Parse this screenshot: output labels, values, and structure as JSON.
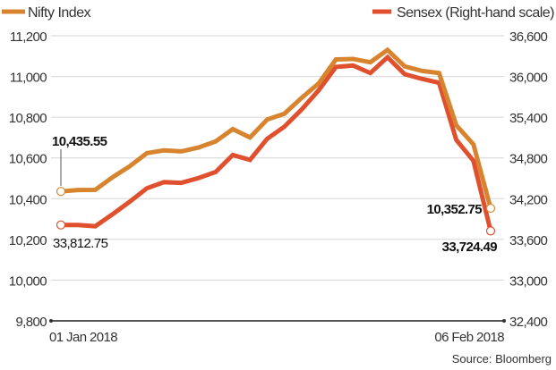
{
  "chart_data": {
    "type": "line",
    "title": "",
    "source": "Source: Bloomberg",
    "x_start_label": "01 Jan 2018",
    "x_end_label": "06 Feb 2018",
    "grid": true,
    "legend_placement": "top",
    "y_left": {
      "min": 9800,
      "max": 11200,
      "ticks": [
        "9,800",
        "10,000",
        "10,200",
        "10,400",
        "10,600",
        "10,800",
        "11,000",
        "11,200"
      ]
    },
    "y_right": {
      "min": 32400,
      "max": 36600,
      "ticks": [
        "32,400",
        "33,000",
        "33,600",
        "34,200",
        "34,800",
        "35,400",
        "36,000",
        "36,600"
      ]
    },
    "series": [
      {
        "name": "Nifty Index",
        "axis": "left",
        "color": "#D8842F",
        "values": [
          10435.55,
          10442.2,
          10443.2,
          10504.8,
          10558.85,
          10623.6,
          10637,
          10632.2,
          10651.2,
          10681.25,
          10741.55,
          10700.45,
          10788.55,
          10817,
          10894.7,
          10966.2,
          11083.7,
          11086,
          11069.65,
          11130.4,
          11049.65,
          11027.7,
          11016.9,
          10760.6,
          10666.55,
          10352.75
        ],
        "start_label": "10,435.55",
        "end_label": "10,352.75"
      },
      {
        "name": "Sensex (Right-hand scale)",
        "axis": "right",
        "color": "#E04F2E",
        "values": [
          33812.75,
          33812.26,
          33793.38,
          33969.64,
          34153.85,
          34352.79,
          34443.19,
          34433.07,
          34503.49,
          34592.39,
          34843.51,
          34771.05,
          35081.82,
          35260.29,
          35511.58,
          35798.01,
          36139.98,
          36161.64,
          36050.44,
          36283.25,
          36033.73,
          35965.02,
          35906.66,
          35066.75,
          34757.16,
          33724.49
        ],
        "start_label": "33,812.75",
        "end_label": "33,724.49"
      }
    ]
  }
}
